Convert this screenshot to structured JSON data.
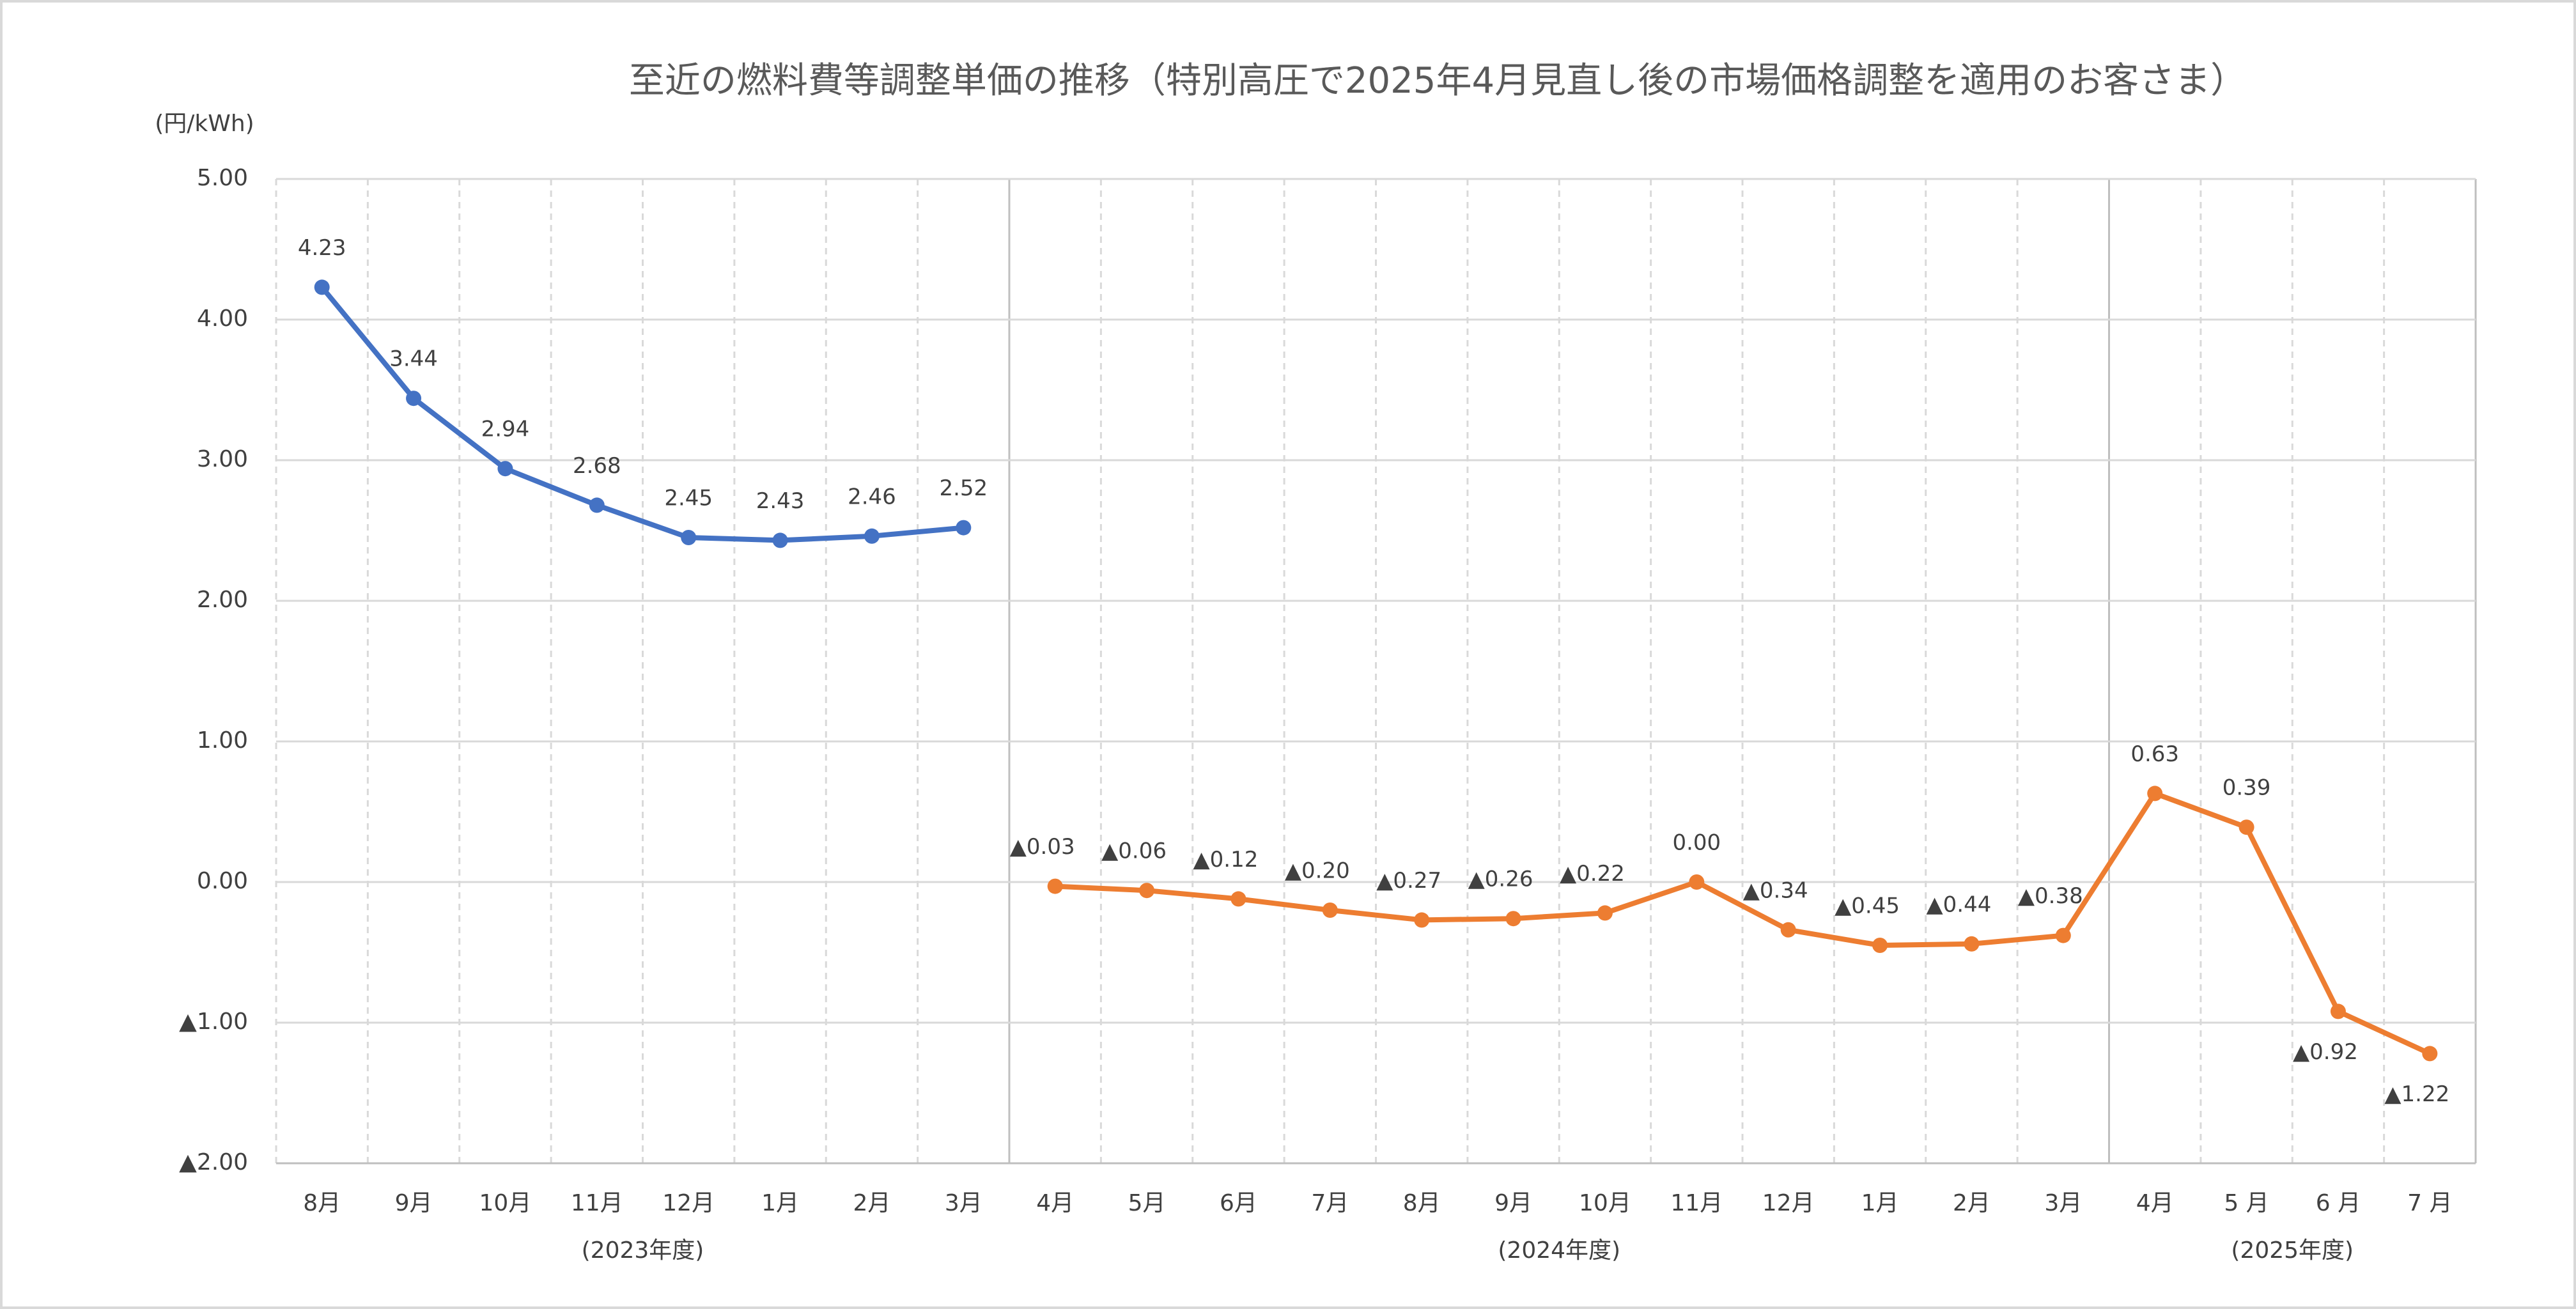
{
  "chart_data": {
    "type": "line",
    "title": "至近の燃料費等調整単価の推移（特別高圧で2025年4月見直し後の市場価格調整を適用のお客さま）",
    "y_unit": "(円/kWh)",
    "categories": [
      "8月",
      "9月",
      "10月",
      "11月",
      "12月",
      "1月",
      "2月",
      "3月",
      "4月",
      "5月",
      "6月",
      "7月",
      "8月",
      "9月",
      "10月",
      "11月",
      "12月",
      "1月",
      "2月",
      "3月",
      "4月",
      "5 月",
      "6 月",
      "7 月"
    ],
    "groups": [
      "(2023年度)",
      "(2024年度)",
      "(2025年度)"
    ],
    "series": [
      {
        "color": "#4472c4",
        "values": [
          4.23,
          3.44,
          2.94,
          2.68,
          2.45,
          2.43,
          2.46,
          2.52,
          null,
          null,
          null,
          null,
          null,
          null,
          null,
          null,
          null,
          null,
          null,
          null,
          null,
          null,
          null,
          null
        ],
        "value_labels": [
          "4.23",
          "3.44",
          "2.94",
          "2.68",
          "2.45",
          "2.43",
          "2.46",
          "2.52",
          null,
          null,
          null,
          null,
          null,
          null,
          null,
          null,
          null,
          null,
          null,
          null,
          null,
          null,
          null,
          null
        ]
      },
      {
        "color": "#ed7d31",
        "values": [
          null,
          null,
          null,
          null,
          null,
          null,
          null,
          null,
          -0.03,
          -0.06,
          -0.12,
          -0.2,
          -0.27,
          -0.26,
          -0.22,
          0.0,
          -0.34,
          -0.45,
          -0.44,
          -0.38,
          0.63,
          0.39,
          -0.92,
          -1.22
        ],
        "value_labels": [
          null,
          null,
          null,
          null,
          null,
          null,
          null,
          null,
          "▲0.03",
          "▲0.06",
          "▲0.12",
          "▲0.20",
          "▲0.27",
          "▲0.26",
          "▲0.22",
          "0.00",
          "▲0.34",
          "▲0.45",
          "▲0.44",
          "▲0.38",
          "0.63",
          "0.39",
          "▲0.92",
          "▲1.22"
        ]
      }
    ],
    "ylim": [
      -2,
      5
    ],
    "yticks": [
      {
        "value": 5,
        "label": "5.00"
      },
      {
        "value": 4,
        "label": "4.00"
      },
      {
        "value": 3,
        "label": "3.00"
      },
      {
        "value": 2,
        "label": "2.00"
      },
      {
        "value": 1,
        "label": "1.00"
      },
      {
        "value": 0,
        "label": "0.00"
      },
      {
        "value": -1,
        "label": "▲1.00"
      },
      {
        "value": -2,
        "label": "▲2.00"
      }
    ],
    "grid": true
  }
}
